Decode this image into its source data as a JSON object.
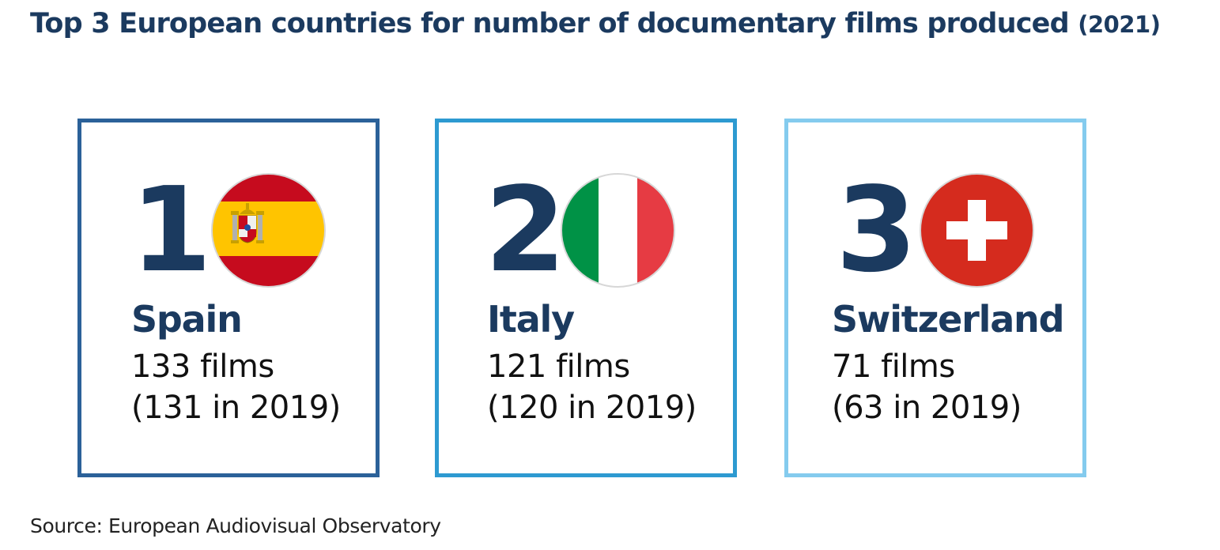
{
  "title": {
    "main": "Top 3 European countries for number of documentary films produced",
    "year": "(2021)"
  },
  "rankings": [
    {
      "rank": "1",
      "country": "Spain",
      "films": "133 films",
      "previous": "(131 in 2019)",
      "flag_icon": "spain-flag-icon",
      "colors": {
        "border": "#2b6199",
        "flag": [
          "#c60b1e",
          "#ffc400"
        ]
      }
    },
    {
      "rank": "2",
      "country": "Italy",
      "films": "121 films",
      "previous": "(120 in 2019)",
      "flag_icon": "italy-flag-icon",
      "colors": {
        "border": "#2d9ad1",
        "flag": [
          "#009246",
          "#ffffff",
          "#e63b43"
        ]
      }
    },
    {
      "rank": "3",
      "country": "Switzerland",
      "films": "71 films",
      "previous": "(63 in 2019)",
      "flag_icon": "switzerland-flag-icon",
      "colors": {
        "border": "#84cbee",
        "flag": [
          "#d52b1e",
          "#ffffff"
        ]
      }
    }
  ],
  "source": "Source: European Audiovisual Observatory",
  "colors": {
    "heading": "#1b3a5f",
    "body_text": "#111111"
  }
}
